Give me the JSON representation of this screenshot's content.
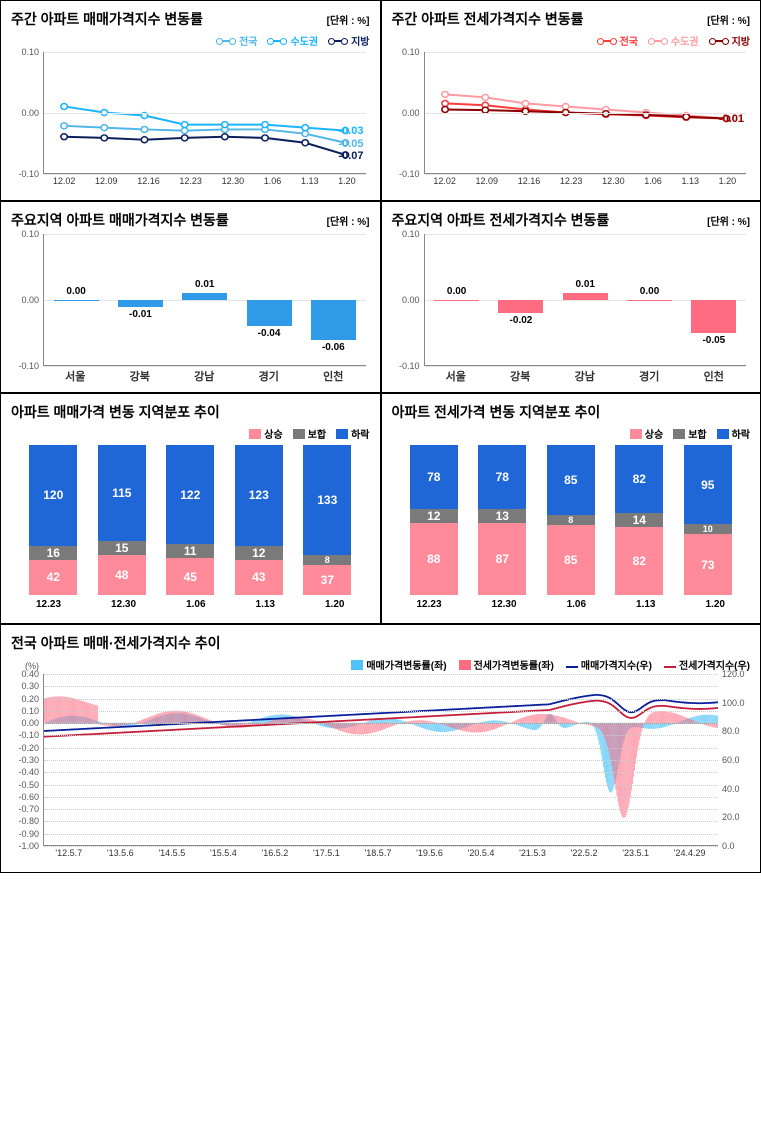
{
  "unit_label": "[단위 : %]",
  "line_charts": [
    {
      "title": "주간 아파트 매매가격지수 변동률",
      "y": {
        "min": -0.1,
        "max": 0.1,
        "ticks": [
          0.1,
          0.0,
          -0.1
        ]
      },
      "x_labels": [
        "12.02",
        "12.09",
        "12.16",
        "12.23",
        "12.30",
        "1.06",
        "1.13",
        "1.20"
      ],
      "series": [
        {
          "name": "전국",
          "color": "#4fb6e8",
          "values": [
            -0.022,
            -0.025,
            -0.028,
            -0.03,
            -0.028,
            -0.028,
            -0.035,
            -0.05
          ],
          "end_label": "-0.05"
        },
        {
          "name": "수도권",
          "color": "#1bb4ff",
          "values": [
            0.01,
            0.0,
            -0.005,
            -0.02,
            -0.02,
            -0.02,
            -0.025,
            -0.03
          ],
          "end_label": "-0.03"
        },
        {
          "name": "지방",
          "color": "#0a1f5c",
          "values": [
            -0.04,
            -0.042,
            -0.045,
            -0.042,
            -0.04,
            -0.042,
            -0.05,
            -0.07
          ],
          "end_label": "-0.07"
        }
      ]
    },
    {
      "title": "주간 아파트 전세가격지수 변동률",
      "y": {
        "min": -0.1,
        "max": 0.1,
        "ticks": [
          0.1,
          0.0,
          -0.1
        ]
      },
      "x_labels": [
        "12.02",
        "12.09",
        "12.16",
        "12.23",
        "12.30",
        "1.06",
        "1.13",
        "1.20"
      ],
      "series": [
        {
          "name": "전국",
          "color": "#ff3b3b",
          "values": [
            0.015,
            0.012,
            0.005,
            0.0,
            -0.003,
            -0.005,
            -0.008,
            -0.01
          ],
          "end_label": "-0.01"
        },
        {
          "name": "수도권",
          "color": "#ff9aa2",
          "values": [
            0.03,
            0.025,
            0.015,
            0.01,
            0.005,
            0.0,
            -0.005,
            -0.01
          ],
          "end_label": "-0.01"
        },
        {
          "name": "지방",
          "color": "#8b0000",
          "values": [
            0.005,
            0.004,
            0.002,
            0.0,
            -0.002,
            -0.004,
            -0.007,
            -0.01
          ],
          "end_label": "-0.01"
        }
      ]
    }
  ],
  "bar_charts": [
    {
      "title": "주요지역 아파트 매매가격지수 변동률",
      "y": {
        "min": -0.1,
        "max": 0.1,
        "ticks": [
          0.1,
          0.0,
          -0.1
        ]
      },
      "bar_color": "#2f9be8",
      "categories": [
        "서울",
        "강북",
        "강남",
        "경기",
        "인천"
      ],
      "values": [
        0.0,
        -0.01,
        0.01,
        -0.04,
        -0.06
      ],
      "labels": [
        "0.00",
        "-0.01",
        "0.01",
        "-0.04",
        "-0.06"
      ]
    },
    {
      "title": "주요지역 아파트 전세가격지수 변동률",
      "y": {
        "min": -0.1,
        "max": 0.1,
        "ticks": [
          0.1,
          0.0,
          -0.1
        ]
      },
      "bar_color": "#ff6b81",
      "categories": [
        "서울",
        "강북",
        "강남",
        "경기",
        "인천"
      ],
      "values": [
        0.0,
        -0.02,
        0.01,
        0.0,
        -0.05
      ],
      "labels": [
        "0.00",
        "-0.02",
        "0.01",
        "0.00",
        "-0.05"
      ]
    }
  ],
  "stack_charts": [
    {
      "title": "아파트 매매가격 변동 지역분포 추이",
      "legend": [
        {
          "name": "상승",
          "color": "#ff8a9a"
        },
        {
          "name": "보합",
          "color": "#7a7a7a"
        },
        {
          "name": "하락",
          "color": "#1f66d6"
        }
      ],
      "x_labels": [
        "12.23",
        "12.30",
        "1.06",
        "1.13",
        "1.20"
      ],
      "stacks": [
        {
          "down": 120,
          "flat": 16,
          "up": 42
        },
        {
          "down": 115,
          "flat": 15,
          "up": 48
        },
        {
          "down": 122,
          "flat": 11,
          "up": 45
        },
        {
          "down": 123,
          "flat": 12,
          "up": 43
        },
        {
          "down": 133,
          "flat": 8,
          "up": 37
        }
      ]
    },
    {
      "title": "아파트 전세가격 변동 지역분포 추이",
      "legend": [
        {
          "name": "상승",
          "color": "#ff8a9a"
        },
        {
          "name": "보합",
          "color": "#7a7a7a"
        },
        {
          "name": "하락",
          "color": "#1f66d6"
        }
      ],
      "x_labels": [
        "12.23",
        "12.30",
        "1.06",
        "1.13",
        "1.20"
      ],
      "stacks": [
        {
          "down": 78,
          "flat": 12,
          "up": 88
        },
        {
          "down": 78,
          "flat": 13,
          "up": 87
        },
        {
          "down": 85,
          "flat": 8,
          "up": 85
        },
        {
          "down": 82,
          "flat": 14,
          "up": 82
        },
        {
          "down": 95,
          "flat": 10,
          "up": 73
        }
      ]
    }
  ],
  "bottom_chart": {
    "title": "전국 아파트 매매·전세가격지수 추이",
    "legend": [
      {
        "name": "매매가격변동률(좌)",
        "type": "bar",
        "color": "#4fc3f7"
      },
      {
        "name": "전세가격변동률(좌)",
        "type": "bar",
        "color": "#ff6b81"
      },
      {
        "name": "매매가격지수(우)",
        "type": "line",
        "color": "#0a1f9c"
      },
      {
        "name": "전세가격지수(우)",
        "type": "line",
        "color": "#c41e3a"
      }
    ],
    "left_axis": {
      "label": "(%)",
      "ticks": [
        0.4,
        0.3,
        0.2,
        0.1,
        0.0,
        -0.1,
        -0.2,
        -0.3,
        -0.4,
        -0.5,
        -0.6,
        -0.7,
        -0.8,
        -0.9,
        -1.0
      ]
    },
    "right_axis": {
      "ticks": [
        120.0,
        100.0,
        80.0,
        60.0,
        40.0,
        20.0,
        0.0
      ]
    },
    "x_labels": [
      "'12.5.7",
      "'13.5.6",
      "'14.5.5",
      "'15.5.4",
      "'16.5.2",
      "'17.5.1",
      "'18.5.7",
      "'19.5.6",
      "'20.5.4",
      "'21.5.3",
      "'22.5.2",
      "'23.5.1",
      "'24.4.29"
    ]
  }
}
